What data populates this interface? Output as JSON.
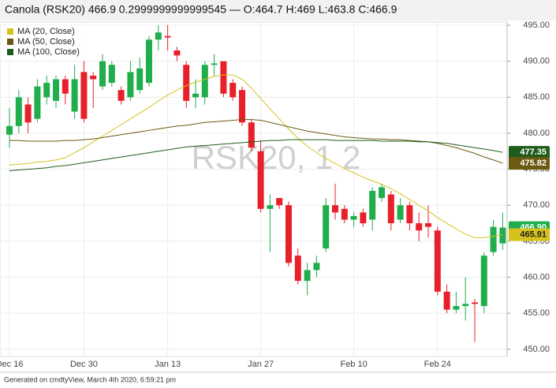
{
  "chart_data": {
    "type": "candlestick",
    "title": "Canola (RSK20) 466.9 0.2999999999999545 — O:464.7 H:469 L:463.8 C:466.9",
    "watermark": "RSK20, 1 2",
    "footer": "Generated on cmdtyView, March 4th 2020, 6:59:21 pm",
    "categories": [
      "Dec 16",
      null,
      null,
      null,
      null,
      null,
      null,
      null,
      "Dec 30",
      null,
      null,
      null,
      null,
      null,
      null,
      null,
      null,
      "Jan 13",
      null,
      null,
      null,
      null,
      null,
      null,
      null,
      null,
      null,
      "Jan 27",
      null,
      null,
      null,
      null,
      null,
      null,
      null,
      null,
      null,
      "Feb 10",
      null,
      null,
      null,
      null,
      null,
      null,
      null,
      null,
      "Feb 24",
      null,
      null,
      null,
      null,
      null,
      null,
      null
    ],
    "open": [
      479.8,
      481,
      484,
      482,
      485,
      484.5,
      487.5,
      483,
      488.5,
      488,
      486.5,
      487,
      486,
      485,
      486,
      487,
      493,
      493.5,
      491.5,
      489.5,
      485,
      485,
      489.5,
      490,
      487,
      486,
      481.5,
      477.5,
      469.5,
      471,
      470,
      463,
      459.5,
      461,
      464,
      470,
      469.5,
      468,
      469,
      468,
      471,
      471.5,
      468,
      470,
      467.5,
      467.5,
      466.5,
      458,
      455.5,
      456,
      456.5,
      456,
      463.5,
      464.7
    ],
    "high": [
      483.5,
      486,
      485,
      487.5,
      488,
      488,
      488,
      489.5,
      490,
      488.5,
      491,
      490,
      486.5,
      490,
      490.5,
      493.5,
      495,
      495,
      492,
      490,
      487.5,
      490,
      491,
      490,
      487.5,
      486.5,
      482,
      479,
      471.5,
      471,
      470.5,
      464,
      462,
      463,
      471,
      473,
      470,
      469,
      469.5,
      472.5,
      473,
      472,
      471,
      470.5,
      469,
      470,
      467,
      459,
      458,
      460,
      457,
      463.5,
      468,
      469
    ],
    "low": [
      478,
      480,
      480,
      481.5,
      484,
      483.5,
      484,
      482,
      481.5,
      483.5,
      486,
      486.5,
      484,
      484.5,
      485.5,
      486.5,
      491.5,
      491.5,
      490,
      483.5,
      483.5,
      484,
      488,
      485,
      484.5,
      481,
      477.5,
      469,
      463.5,
      469.5,
      461.5,
      459,
      457.5,
      460,
      463.5,
      468,
      467.5,
      467,
      467,
      466.5,
      470.5,
      466.5,
      467.5,
      466.5,
      465,
      465.5,
      457.5,
      455,
      455,
      454,
      451,
      455,
      463,
      463.8
    ],
    "close": [
      481,
      485,
      481.5,
      486.5,
      487,
      487.5,
      485.5,
      487.5,
      482,
      487.5,
      490,
      489.5,
      484.5,
      488.5,
      489,
      493,
      494,
      493.3,
      490.8,
      484.5,
      485.5,
      489.5,
      489.7,
      485.5,
      485,
      481.5,
      478,
      469.5,
      470,
      470,
      462,
      459.5,
      461,
      462,
      470,
      469,
      468,
      468.5,
      467.5,
      472,
      472.5,
      467.5,
      470,
      467.5,
      466.5,
      467,
      458,
      455.5,
      456,
      456.3,
      456.3,
      463,
      467,
      466.9
    ],
    "last_label": "466.90",
    "up_color": "#1fae4b",
    "down_color": "#e8202a",
    "series": [
      {
        "name": "MA (20, Close)",
        "color": "#d6c21c",
        "values": [
          475.6,
          475.7,
          475.8,
          476,
          476.1,
          476.3,
          476.6,
          477.3,
          478,
          478.8,
          479.6,
          480.4,
          481.2,
          482,
          482.8,
          483.6,
          484.5,
          485.3,
          486,
          486.6,
          487.1,
          487.5,
          487.9,
          488.1,
          488.1,
          487.5,
          486.3,
          484.8,
          483.4,
          482,
          480.6,
          479.3,
          478.2,
          477.3,
          476.5,
          475.8,
          475.1,
          474.5,
          473.9,
          473.4,
          472.9,
          472.3,
          471.6,
          470.8,
          470,
          469.2,
          468.3,
          467.5,
          466.7,
          466,
          465.5,
          465.5,
          465.7,
          465.91
        ]
      },
      {
        "name": "MA (50, Close)",
        "color": "#6b5a12",
        "values": [
          479,
          479,
          478.9,
          478.9,
          478.9,
          478.9,
          479,
          479,
          479.1,
          479.2,
          479.4,
          479.6,
          479.8,
          480,
          480.2,
          480.4,
          480.6,
          480.8,
          481,
          481.1,
          481.3,
          481.5,
          481.6,
          481.7,
          481.8,
          481.9,
          481.9,
          481.8,
          481.5,
          481.2,
          480.9,
          480.6,
          480.3,
          480.1,
          479.9,
          479.7,
          479.5,
          479.4,
          479.3,
          479.2,
          479.2,
          479.1,
          479.1,
          479,
          478.9,
          478.8,
          478.6,
          478.3,
          478,
          477.6,
          477.2,
          476.7,
          476.3,
          475.82
        ]
      },
      {
        "name": "MA (100, Close)",
        "color": "#1e5c1c",
        "values": [
          474.8,
          474.9,
          475,
          475.1,
          475.2,
          475.4,
          475.5,
          475.7,
          475.9,
          476.1,
          476.3,
          476.5,
          476.7,
          476.9,
          477.1,
          477.3,
          477.5,
          477.7,
          477.9,
          478.1,
          478.2,
          478.3,
          478.4,
          478.5,
          478.6,
          478.7,
          478.8,
          478.9,
          479,
          479,
          479.1,
          479.1,
          479.1,
          479.1,
          479.1,
          479,
          479,
          479,
          479,
          479,
          478.9,
          478.9,
          478.9,
          478.9,
          478.8,
          478.8,
          478.7,
          478.6,
          478.4,
          478.2,
          478,
          477.8,
          477.6,
          477.35
        ]
      }
    ],
    "ylim": [
      449,
      495.44
    ],
    "yticks": [
      {
        "value": 450,
        "label": "450.00"
      },
      {
        "value": 455,
        "label": "455.00"
      },
      {
        "value": 460,
        "label": "460.00"
      },
      {
        "value": 465,
        "label": "465.00"
      },
      {
        "value": 470,
        "label": "470.00"
      },
      {
        "value": 475,
        "label": "475.00"
      },
      {
        "value": 480,
        "label": "480.00"
      },
      {
        "value": 485,
        "label": "485.00"
      },
      {
        "value": 490,
        "label": "490.00"
      },
      {
        "value": 495,
        "label": "495.00"
      }
    ],
    "grid": true
  }
}
